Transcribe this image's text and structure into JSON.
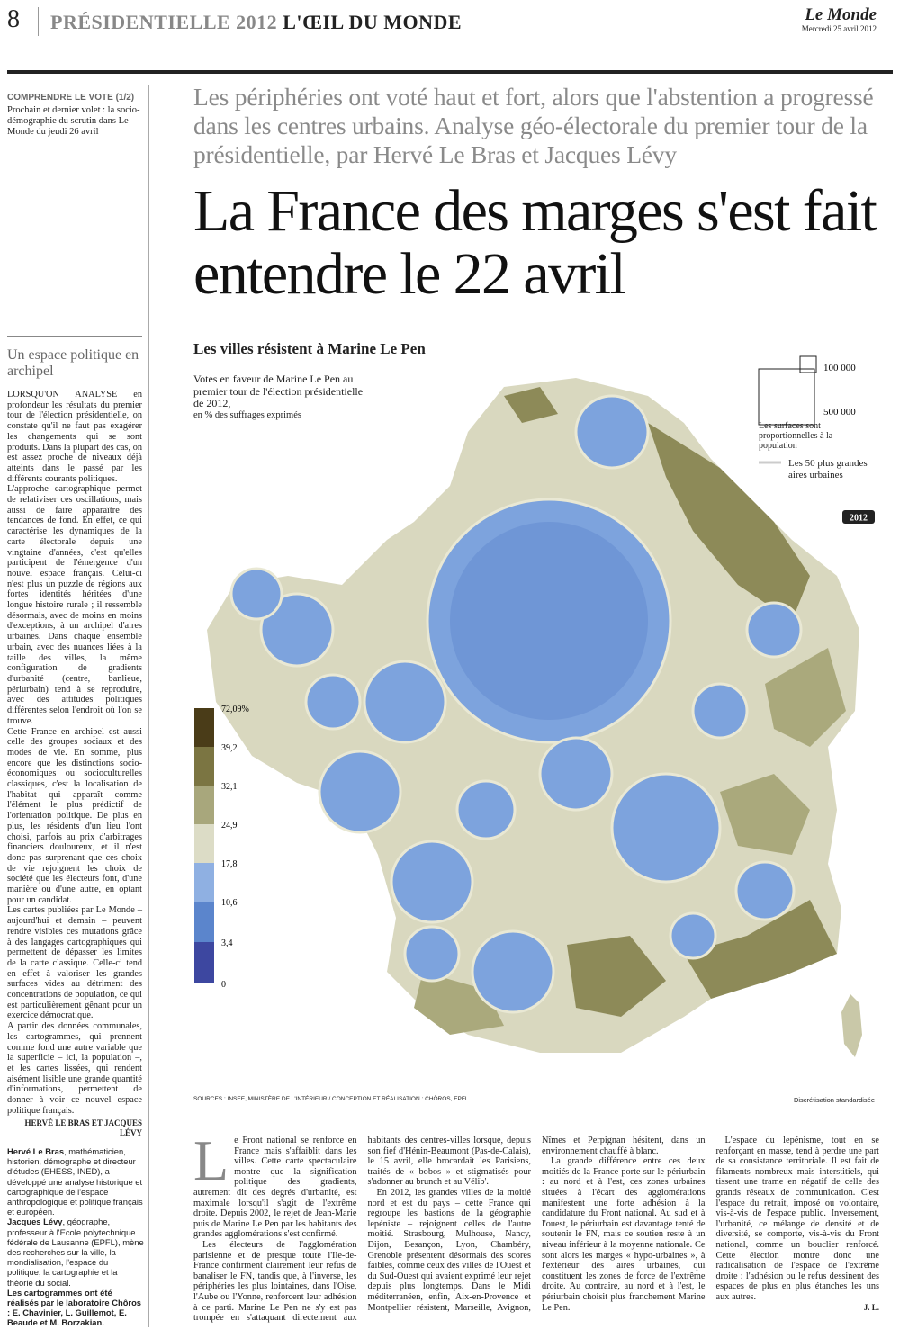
{
  "header": {
    "page": "8",
    "section": "PRÉSIDENTIELLE 2012",
    "rubric": "L'ŒIL DU MONDE",
    "brand": "Le Monde",
    "date": "Mercredi 25 avril 2012"
  },
  "sidebar": {
    "kicker": "COMPRENDRE LE VOTE (1/2)",
    "next": "Prochain et dernier volet : la socio-démographie du scrutin dans Le Monde du jeudi 26 avril",
    "title": "Un espace politique en archipel",
    "paragraphs": [
      "LORSQU'ON ANALYSE en profondeur les résultats du premier tour de l'élection présidentielle, on constate qu'il ne faut pas exagérer les changements qui se sont produits. Dans la plupart des cas, on est assez proche de niveaux déjà atteints dans le passé par les différents courants politiques.",
      "L'approche cartographique permet de relativiser ces oscillations, mais aussi de faire apparaître des tendances de fond. En effet, ce qui caractérise les dynamiques de la carte électorale depuis une vingtaine d'années, c'est qu'elles participent de l'émergence d'un nouvel espace français. Celui-ci n'est plus un puzzle de régions aux fortes identités héritées d'une longue histoire rurale ; il ressemble désormais, avec de moins en moins d'exceptions, à un archipel d'aires urbaines. Dans chaque ensemble urbain, avec des nuances liées à la taille des villes, la même configuration de gradients d'urbanité (centre, banlieue, périurbain) tend à se reproduire, avec des attitudes politiques différentes selon l'endroit où l'on se trouve.",
      "Cette France en archipel est aussi celle des groupes sociaux et des modes de vie. En somme, plus encore que les distinctions socio-économiques ou socioculturelles classiques, c'est la localisation de l'habitat qui apparaît comme l'élément le plus prédictif de l'orientation politique. De plus en plus, les résidents d'un lieu l'ont choisi, parfois au prix d'arbitrages financiers douloureux, et il n'est donc pas surprenant que ces choix de vie rejoignent les choix de société que les électeurs font, d'une manière ou d'une autre, en optant pour un candidat.",
      "Les cartes publiées par Le Monde – aujourd'hui et demain – peuvent rendre visibles ces mutations grâce à des langages cartographiques qui permettent de dépasser les limites de la carte classique. Celle-ci tend en effet à valoriser les grandes surfaces vides au détriment des concentrations de population, ce qui est particulièrement gênant pour un exercice démocratique.",
      "A partir des données communales, les cartogrammes, qui prennent comme fond une autre variable que la superficie – ici, la population –, et les cartes lissées, qui rendent aisément lisible une grande quantité d'informations, permettent de donner à voir ce nouvel espace politique français."
    ],
    "signature": "HERVÉ LE BRAS ET JACQUES LÉVY",
    "bio": [
      {
        "name": "Hervé Le Bras",
        "text": ", mathématicien, historien, démographe et directeur d'études (EHESS, INED), a développé une analyse historique et cartographique de l'espace anthropologique et politique français et européen."
      },
      {
        "name": "Jacques Lévy",
        "text": ", géographe, professeur à l'Ecole polytechnique fédérale de Lausanne (EPFL), mène des recherches sur la ville, la mondialisation, l'espace du politique, la cartographie et la théorie du social."
      }
    ],
    "credits": "Les cartogrammes ont été réalisés par le laboratoire Chôros : E. Chavinier, L. Guillemot, E. Beaude et M. Borzakian."
  },
  "article": {
    "deck": "Les périphéries ont voté haut et fort, alors que l'abstention a progressé dans les centres urbains. Analyse géo-électorale du premier tour de la présidentielle, par Hervé Le Bras et Jacques Lévy",
    "headline": "La France des marges s'est fait entendre le 22 avril",
    "dropcap": "L",
    "paragraphs": [
      "e Front national se renforce en France mais s'affaiblit dans les villes. Cette carte spectaculaire montre que la signification politique des gradients, autrement dit des degrés d'urbanité, est maximale lorsqu'il s'agit de l'extrême droite. Depuis 2002, le rejet de Jean-Marie puis de Marine Le Pen par les habitants des grandes agglomérations s'est confirmé.",
      "Les électeurs de l'agglomération parisienne et de presque toute l'Ile-de-France confirment clairement leur refus de banaliser le FN, tandis que, à l'inverse, les périphéries les plus lointaines, dans l'Oise, l'Aube ou l'Yonne, renforcent leur adhésion à ce parti. Marine Le Pen ne s'y est pas trompée en s'attaquant directement aux habitants des centres-villes lorsque, depuis son fief d'Hénin-Beaumont (Pas-de-Calais), le 15 avril, elle brocardait les Parisiens, traités de « bobos » et stigmatisés pour s'adonner au brunch et au Vélib'.",
      "En 2012, les grandes villes de la moitié nord et est du pays – cette France qui regroupe les bastions de la géographie lepéniste – rejoignent celles de l'autre moitié. Strasbourg, Mulhouse, Nancy, Dijon, Besançon, Lyon, Chambéry, Grenoble présentent désormais des scores faibles, comme ceux des villes de l'Ouest et du Sud-Ouest qui avaient exprimé leur rejet depuis plus longtemps. Dans le Midi méditerranéen, enfin, Aix-en-Provence et Montpellier résistent, Marseille, Avignon, Nîmes et Perpignan hésitent, dans un environnement chauffé à blanc.",
      "La grande différence entre ces deux moitiés de la France porte sur le périurbain : au nord et à l'est, ces zones urbaines situées à l'écart des agglomérations manifestent une forte adhésion à la candidature du Front national. Au sud et à l'ouest, le périurbain est davantage tenté de soutenir le FN, mais ce soutien reste à un niveau inférieur à la moyenne nationale. Ce sont alors les marges « hypo-urbaines », à l'extérieur des aires urbaines, qui constituent les zones de force de l'extrême droite. Au contraire, au nord et à l'est, le périurbain choisit plus franchement Marine Le Pen.",
      "L'espace du lepénisme, tout en se renforçant en masse, tend à perdre une part de sa consistance territoriale. Il est fait de filaments nombreux mais interstitiels, qui tissent une trame en négatif de celle des grands réseaux de communication. C'est l'espace du retrait, imposé ou volontaire, vis-à-vis de l'espace public. Inversement, l'urbanité, ce mélange de densité et de diversité, se comporte, vis-à-vis du Front national, comme un bouclier renforcé. Cette élection montre donc une radicalisation de l'espace de l'extrême droite : l'adhésion ou le refus dessinent des espaces de plus en plus étanches les uns aux autres."
    ],
    "signature": "J. L."
  },
  "map": {
    "title": "Les villes résistent à Marine Le Pen",
    "subtitle": "Votes en faveur de Marine Le Pen au premier tour de l'élection présidentielle de 2012,",
    "unit": "en % des suffrages exprimés",
    "size_small": "100 000",
    "size_large": "500 000",
    "size_note": "Les surfaces sont proportionnelles à la population",
    "cities_note": "Les 50 plus grandes aires urbaines",
    "year": "2012",
    "legend": [
      "72,09%",
      "39,2",
      "32,1",
      "24,9",
      "17,8",
      "10,6",
      "3,4",
      "0"
    ],
    "sources": "SOURCES : INSEE, MINISTÈRE DE L'INTÉRIEUR / CONCEPTION ET RÉALISATION : CHÔROS, EPFL",
    "method": "Discrétisation standardisée"
  }
}
